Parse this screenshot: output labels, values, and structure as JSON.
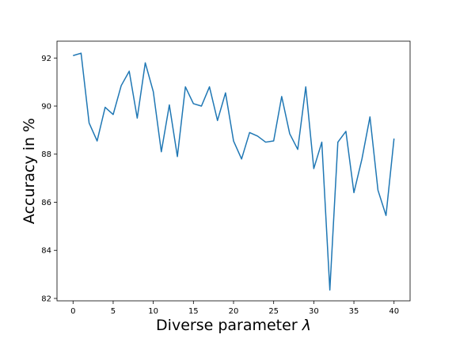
{
  "chart_data": {
    "type": "line",
    "title": "",
    "xlabel": "Diverse parameter",
    "xlabel_symbol": "λ",
    "ylabel": "Accuracy in %",
    "xlim": [
      -2,
      42
    ],
    "ylim": [
      81.9,
      92.7
    ],
    "xticks": [
      0,
      5,
      10,
      15,
      20,
      25,
      30,
      35,
      40
    ],
    "yticks": [
      82,
      84,
      86,
      88,
      90,
      92
    ],
    "grid": false,
    "legend": "none",
    "line_color": "#1f77b4",
    "series": [
      {
        "x": [
          0,
          1,
          2,
          3,
          4,
          5,
          6,
          7,
          8,
          9,
          10,
          11,
          12,
          13,
          14,
          15,
          16,
          17,
          18,
          19,
          20,
          21,
          22,
          23,
          24,
          25,
          26,
          27,
          28,
          29,
          30,
          31,
          32,
          33,
          34,
          35,
          36,
          37,
          38,
          39,
          40
        ],
        "values": [
          92.1,
          92.2,
          89.3,
          88.55,
          89.95,
          89.65,
          90.85,
          91.45,
          89.5,
          91.8,
          90.6,
          88.1,
          90.05,
          87.9,
          90.8,
          90.1,
          90.0,
          90.8,
          89.4,
          90.55,
          88.55,
          87.8,
          88.9,
          88.75,
          88.5,
          88.55,
          90.4,
          88.85,
          88.2,
          90.8,
          87.4,
          88.5,
          82.35,
          88.5,
          88.95,
          86.4,
          87.8,
          89.55,
          86.5,
          85.45,
          88.65
        ]
      }
    ]
  }
}
